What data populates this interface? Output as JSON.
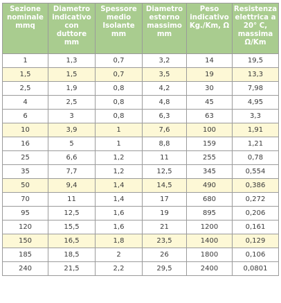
{
  "table": {
    "headers": [
      "Sezione nominale mmq",
      "Diametro indicativo con duttore mm",
      "Spessore medio Isolante mm",
      "Diametro esterno massimo mm",
      "Peso indicativo Kg./Km, Ω",
      "Resistenza elettrica a 20° C, massima Ω/Km"
    ],
    "highlight_color": "#fdf8d6",
    "header_color": "#a9cc8f",
    "rows": [
      {
        "highlight": false,
        "cells": [
          "1",
          "1,3",
          "0,7",
          "3,2",
          "14",
          "19,5"
        ]
      },
      {
        "highlight": true,
        "cells": [
          "1,5",
          "1,5",
          "0,7",
          "3,5",
          "19",
          "13,3"
        ]
      },
      {
        "highlight": false,
        "cells": [
          "2,5",
          "1,9",
          "0,8",
          "4,2",
          "30",
          "7,98"
        ]
      },
      {
        "highlight": false,
        "cells": [
          "4",
          "2,5",
          "0,8",
          "4,8",
          "45",
          "4,95"
        ]
      },
      {
        "highlight": false,
        "cells": [
          "6",
          "3",
          "0,8",
          "6,3",
          "63",
          "3,3"
        ]
      },
      {
        "highlight": true,
        "cells": [
          "10",
          "3,9",
          "1",
          "7,6",
          "100",
          "1,91"
        ]
      },
      {
        "highlight": false,
        "cells": [
          "16",
          "5",
          "1",
          "8,8",
          "159",
          "1,21"
        ]
      },
      {
        "highlight": false,
        "cells": [
          "25",
          "6,6",
          "1,2",
          "11",
          "255",
          "0,78"
        ]
      },
      {
        "highlight": false,
        "cells": [
          "35",
          "7,7",
          "1,2",
          "12,5",
          "345",
          "0,554"
        ]
      },
      {
        "highlight": true,
        "cells": [
          "50",
          "9,4",
          "1,4",
          "14,5",
          "490",
          "0,386"
        ]
      },
      {
        "highlight": false,
        "cells": [
          "70",
          "11",
          "1,4",
          "17",
          "680",
          "0,272"
        ]
      },
      {
        "highlight": false,
        "cells": [
          "95",
          "12,5",
          "1,6",
          "19",
          "895",
          "0,206"
        ]
      },
      {
        "highlight": false,
        "cells": [
          "120",
          "15,5",
          "1,6",
          "21",
          "1200",
          "0,161"
        ]
      },
      {
        "highlight": true,
        "cells": [
          "150",
          "16,5",
          "1,8",
          "23,5",
          "1400",
          "0,129"
        ]
      },
      {
        "highlight": false,
        "cells": [
          "185",
          "18,5",
          "2",
          "26",
          "1800",
          "0,106"
        ]
      },
      {
        "highlight": false,
        "cells": [
          "240",
          "21,5",
          "2,2",
          "29,5",
          "2400",
          "0,0801"
        ]
      }
    ]
  }
}
